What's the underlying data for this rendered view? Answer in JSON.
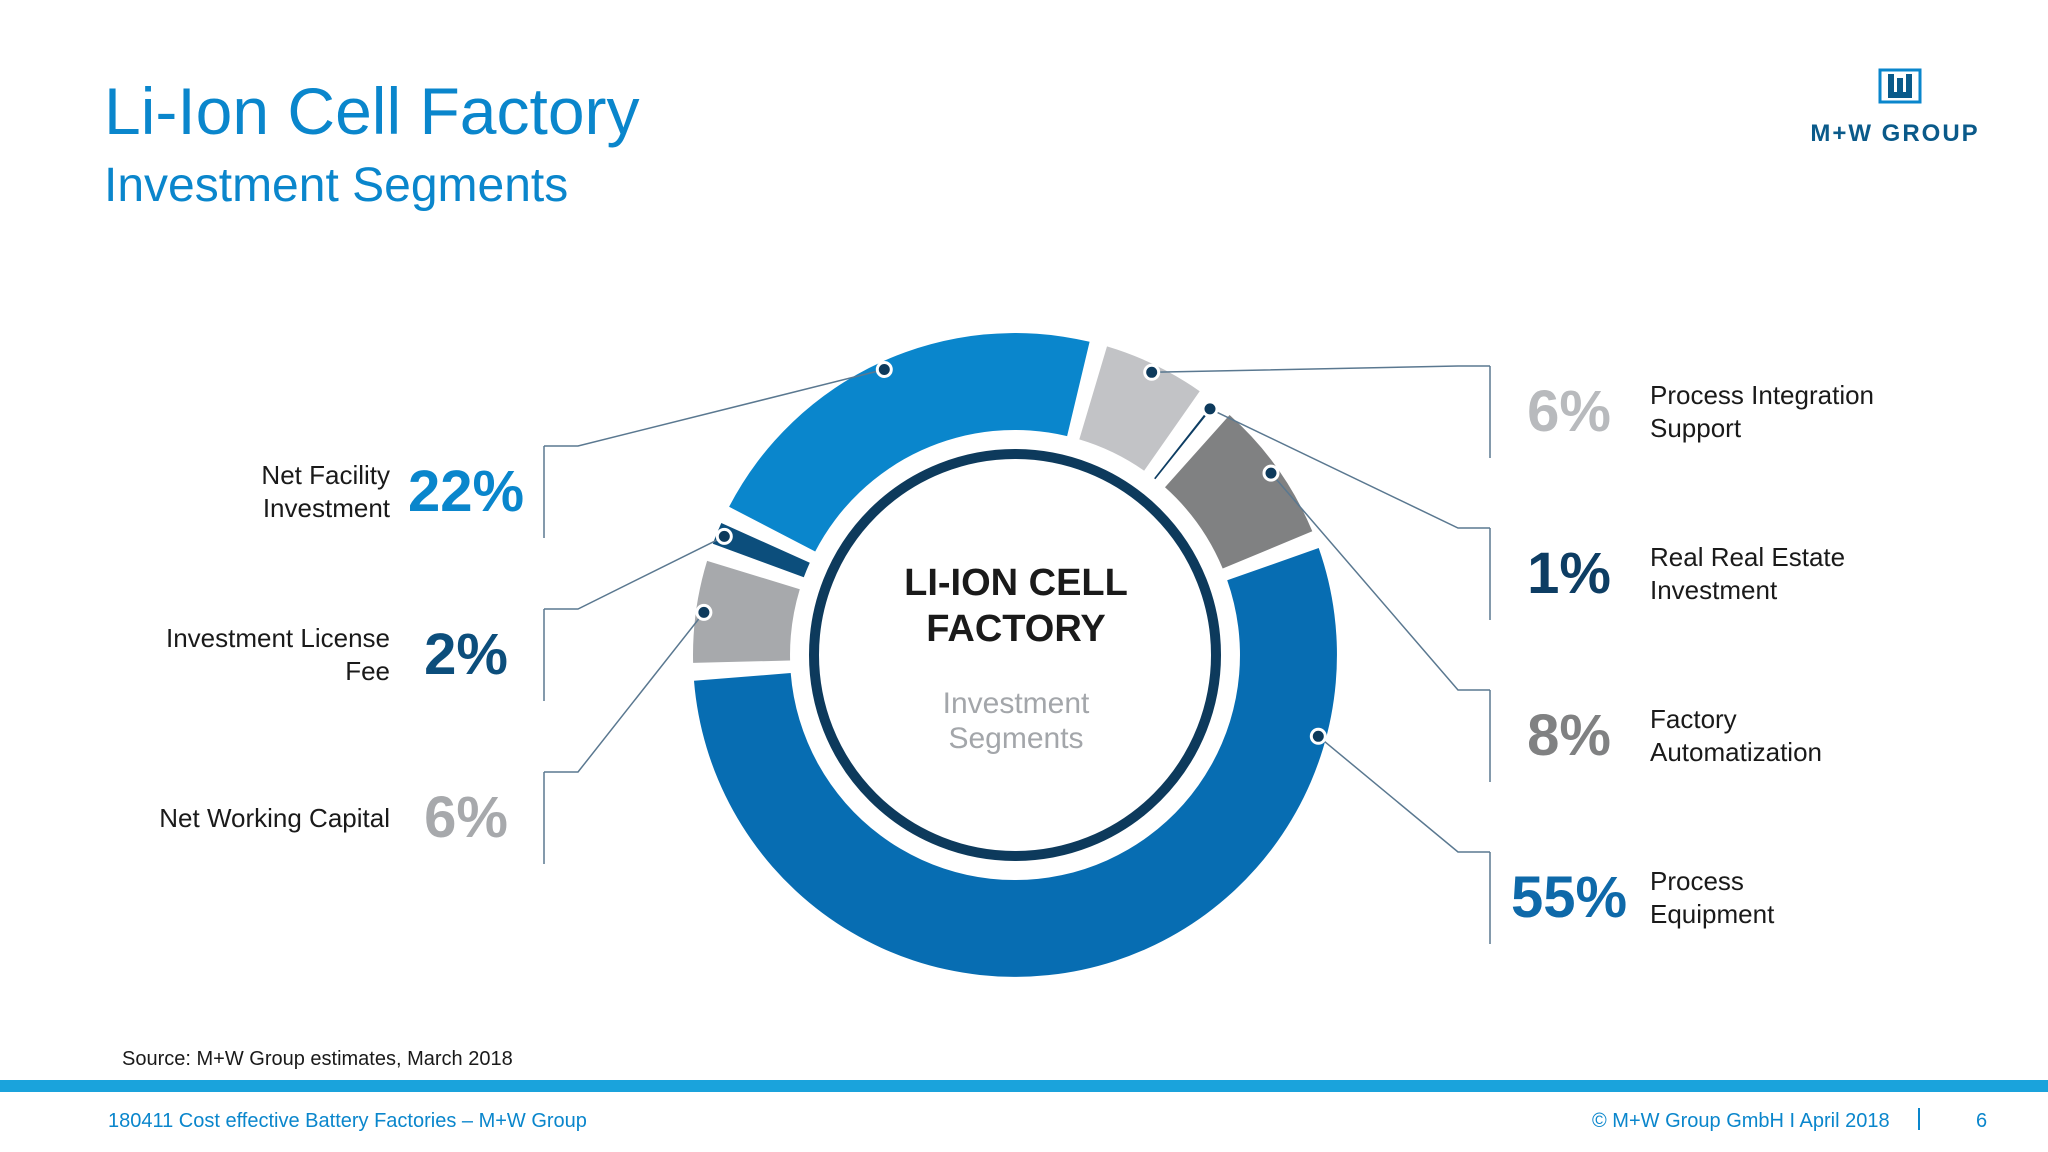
{
  "header": {
    "title": "Li-Ion Cell Factory",
    "subtitle": "Investment Segments"
  },
  "logo": {
    "text": "M+W GROUP",
    "mark_icon": "mw-logo-icon",
    "color": "#0a5a8a"
  },
  "center": {
    "title_line1": "LI-ION CELL",
    "title_line2": "FACTORY",
    "sub_line1": "Investment",
    "sub_line2": "Segments"
  },
  "chart_data": {
    "type": "pie",
    "style": "donut",
    "segments": [
      {
        "label_line1": "Process Integration",
        "label_line2": "Support",
        "value": 6,
        "value_label": "6%",
        "color": "#c2c3c6",
        "label_color": "#b8babd",
        "side": "right"
      },
      {
        "label_line1": "Real Real Estate",
        "label_line2": "Investment",
        "value": 1,
        "value_label": "1%",
        "color": "#0d3d63",
        "label_color": "#0d3d63",
        "side": "right"
      },
      {
        "label_line1": "Factory",
        "label_line2": "Automatization",
        "value": 8,
        "value_label": "8%",
        "color": "#808182",
        "label_color": "#808182",
        "side": "right"
      },
      {
        "label_line1": "Process",
        "label_line2": "Equipment",
        "value": 55,
        "value_label": "55%",
        "color": "#076db2",
        "label_color": "#0e69a9",
        "side": "right"
      },
      {
        "label_line1": "Net Working Capital",
        "label_line2": "",
        "value": 6,
        "value_label": "6%",
        "color": "#a7a9ac",
        "label_color": "#a7a9ac",
        "side": "left"
      },
      {
        "label_line1": "Investment License",
        "label_line2": "Fee",
        "value": 2,
        "value_label": "2%",
        "color": "#0c4e7c",
        "label_color": "#0c4e7c",
        "side": "left"
      },
      {
        "label_line1": "Net Facility",
        "label_line2": "Investment",
        "value": 22,
        "value_label": "22%",
        "color": "#0a86cc",
        "label_color": "#0a86cc",
        "side": "left"
      }
    ]
  },
  "source": "Source: M+W Group estimates,  March 2018",
  "footer": {
    "left": "180411 Cost effective Battery Factories – M+W Group",
    "right": "© M+W Group GmbH I April 2018",
    "page": "6"
  }
}
